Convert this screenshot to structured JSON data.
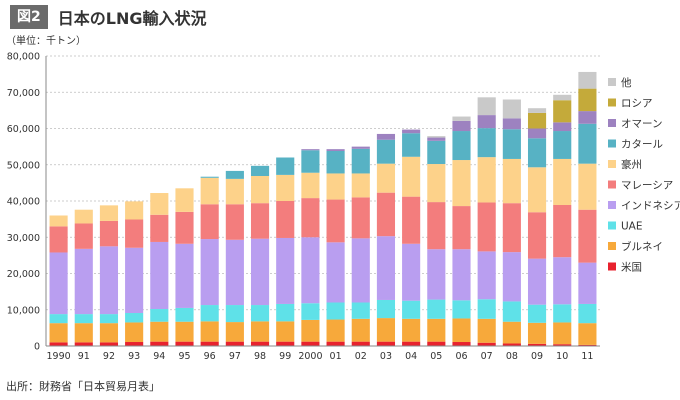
{
  "header": {
    "fig_label": "図2",
    "title": "日本のLNG輸入状況"
  },
  "unit_label": "（単位：千トン）",
  "source": "出所：財務省「日本貿易月表」",
  "chart_data": {
    "type": "bar",
    "stacked": true,
    "title": "日本のLNG輸入状況",
    "ylabel": "千トン",
    "xlabel": "",
    "ylim": [
      0,
      80000
    ],
    "yticks": [
      0,
      10000,
      20000,
      30000,
      40000,
      50000,
      60000,
      70000,
      80000
    ],
    "ytick_labels": [
      "0",
      "10,000",
      "20,000",
      "30,000",
      "40,000",
      "50,000",
      "60,000",
      "70,000",
      "80,000"
    ],
    "categories": [
      "1990",
      "91",
      "92",
      "93",
      "94",
      "95",
      "96",
      "97",
      "98",
      "99",
      "2000",
      "01",
      "02",
      "03",
      "04",
      "05",
      "06",
      "07",
      "08",
      "09",
      "10",
      "11"
    ],
    "legend_position": "right",
    "series": [
      {
        "name": "米国",
        "color": "#e8222e",
        "values": [
          1000,
          1000,
          1000,
          1100,
          1200,
          1200,
          1200,
          1200,
          1200,
          1200,
          1200,
          1200,
          1200,
          1200,
          1200,
          1200,
          1100,
          900,
          700,
          600,
          500,
          300
        ]
      },
      {
        "name": "ブルネイ",
        "color": "#f7a93b",
        "values": [
          5300,
          5300,
          5300,
          5400,
          5500,
          5500,
          5600,
          5400,
          5600,
          5600,
          6000,
          6100,
          6300,
          6500,
          6300,
          6300,
          6500,
          6600,
          6000,
          5800,
          6000,
          6000
        ]
      },
      {
        "name": "UAE",
        "color": "#5fe1e8",
        "values": [
          2500,
          2500,
          2500,
          2600,
          3500,
          3800,
          4500,
          4700,
          4500,
          4800,
          4600,
          4700,
          4500,
          5000,
          5000,
          5300,
          5000,
          5400,
          5600,
          5000,
          5000,
          5300
        ]
      },
      {
        "name": "インドネシア",
        "color": "#b99ef0",
        "values": [
          17000,
          18000,
          18700,
          18000,
          18500,
          17700,
          18200,
          18000,
          18300,
          18200,
          18200,
          16600,
          17700,
          17600,
          15700,
          13900,
          14100,
          13200,
          13600,
          12700,
          13000,
          11400
        ]
      },
      {
        "name": "マレーシア",
        "color": "#f37d7d",
        "values": [
          7200,
          7000,
          7000,
          7800,
          7500,
          8800,
          9600,
          9800,
          9800,
          10200,
          10800,
          11800,
          11300,
          12000,
          13000,
          13000,
          11900,
          13500,
          13500,
          12800,
          14400,
          14600
        ]
      },
      {
        "name": "豪州",
        "color": "#fdd28a",
        "values": [
          3000,
          3800,
          4300,
          5000,
          6000,
          6500,
          7300,
          7000,
          7500,
          7200,
          7000,
          7200,
          6600,
          8000,
          11000,
          10500,
          12700,
          12500,
          12200,
          12400,
          12700,
          12700
        ]
      },
      {
        "name": "カタール",
        "color": "#57b2c4",
        "values": [
          0,
          0,
          0,
          0,
          0,
          0,
          300,
          2200,
          2800,
          4800,
          6200,
          6200,
          6800,
          6600,
          6500,
          6400,
          8000,
          8000,
          8200,
          8000,
          7700,
          11000
        ]
      },
      {
        "name": "オマーン",
        "color": "#9d82c0",
        "values": [
          0,
          0,
          0,
          0,
          0,
          0,
          0,
          0,
          0,
          0,
          300,
          500,
          600,
          1600,
          1000,
          900,
          2800,
          3600,
          3000,
          2700,
          2400,
          3500
        ]
      },
      {
        "name": "ロシア",
        "color": "#c4aa3a",
        "values": [
          0,
          0,
          0,
          0,
          0,
          0,
          0,
          0,
          0,
          0,
          0,
          0,
          0,
          0,
          0,
          0,
          0,
          0,
          0,
          4300,
          6100,
          6200
        ]
      },
      {
        "name": "他",
        "color": "#c9c9c9",
        "values": [
          0,
          0,
          0,
          0,
          0,
          0,
          0,
          0,
          0,
          0,
          0,
          0,
          0,
          0,
          0,
          400,
          1200,
          4900,
          5200,
          1300,
          1500,
          4600
        ]
      }
    ]
  }
}
